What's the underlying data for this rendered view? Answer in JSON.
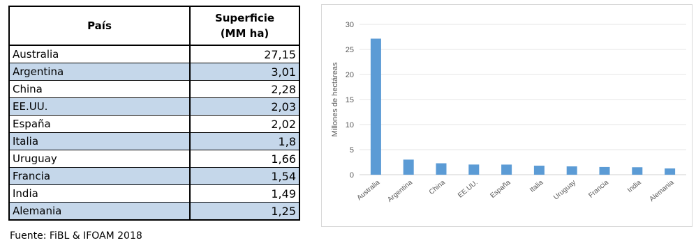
{
  "table": {
    "header_country": "País",
    "header_area_line1": "Superficie",
    "header_area_line2": "(MM ha)",
    "rows": [
      {
        "country": "Australia",
        "value": "27,15"
      },
      {
        "country": "Argentina",
        "value": "3,01"
      },
      {
        "country": "China",
        "value": "2,28"
      },
      {
        "country": "EE.UU.",
        "value": "2,03"
      },
      {
        "country": "España",
        "value": "2,02"
      },
      {
        "country": "Italia",
        "value": "1,8"
      },
      {
        "country": "Uruguay",
        "value": "1,66"
      },
      {
        "country": "Francia",
        "value": "1,54"
      },
      {
        "country": "India",
        "value": "1,49"
      },
      {
        "country": "Alemania",
        "value": "1,25"
      }
    ],
    "source": "Fuente: FiBL & IFOAM 2018"
  },
  "chart_data": {
    "type": "bar",
    "title": "",
    "xlabel": "",
    "ylabel": "Millones de hectáreas",
    "categories": [
      "Australia",
      "Argentina",
      "China",
      "EE.UU.",
      "España",
      "Italia",
      "Uruguay",
      "Francia",
      "India",
      "Alemania"
    ],
    "values": [
      27.15,
      3.01,
      2.28,
      2.03,
      2.02,
      1.8,
      1.66,
      1.54,
      1.49,
      1.25
    ],
    "ylim": [
      0,
      30
    ],
    "yticks": [
      "0",
      "5",
      "10",
      "15",
      "20",
      "25",
      "30"
    ],
    "grid": true,
    "bar_color": "#5b9bd5",
    "grid_color": "#e6e6e6"
  }
}
